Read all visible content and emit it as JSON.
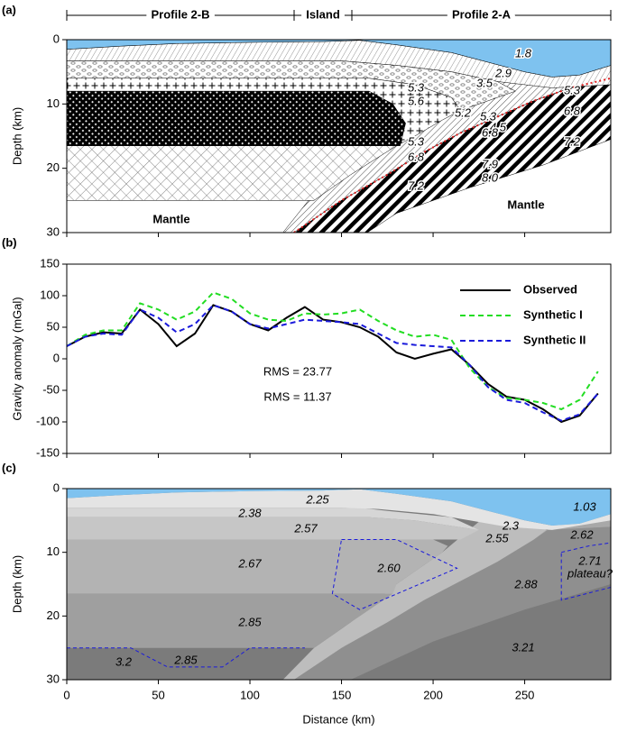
{
  "chart_data": [
    {
      "type": "section",
      "panel_label": "(a)",
      "ylabel": "Depth (km)",
      "y_inverted": true,
      "xlim": [
        0,
        297
      ],
      "xticks": [
        0,
        50,
        100,
        150,
        200,
        250
      ],
      "ylim": [
        0,
        30
      ],
      "yticks": [
        0,
        10,
        20,
        30
      ],
      "segments": [
        "Profile 2-B",
        "Island",
        "Profile 2-A"
      ],
      "labels": [
        "1.8",
        "2.9",
        "3.5",
        "5.3",
        "5.6",
        "5.2",
        "5.3",
        "4.5",
        "6.8",
        "5.3",
        "6.8",
        "5.3",
        "6.8",
        "7.2",
        "7.9",
        "8.0",
        "7.2",
        "Mantle",
        "Mantle"
      ]
    },
    {
      "type": "line",
      "panel_label": "(b)",
      "ylabel": "Gravity anomaly (mGal)",
      "xlim": [
        0,
        297
      ],
      "xticks": [
        0,
        50,
        100,
        150,
        200,
        250
      ],
      "ylim": [
        -150,
        150
      ],
      "yticks": [
        -150,
        -100,
        -50,
        0,
        50,
        100,
        150
      ],
      "x": [
        0,
        10,
        20,
        30,
        40,
        50,
        60,
        70,
        80,
        90,
        100,
        110,
        120,
        130,
        140,
        150,
        160,
        170,
        180,
        190,
        200,
        210,
        220,
        230,
        240,
        250,
        260,
        270,
        280,
        290
      ],
      "series": [
        {
          "name": "Observed",
          "color": "#000000",
          "dash": false,
          "values": [
            20,
            35,
            42,
            40,
            78,
            55,
            20,
            40,
            85,
            75,
            55,
            45,
            65,
            82,
            62,
            58,
            50,
            35,
            10,
            0,
            8,
            15,
            -10,
            -40,
            -60,
            -65,
            -80,
            -100,
            -90,
            -55
          ]
        },
        {
          "name": "Synthetic I",
          "color": "#22dd22",
          "dash": true,
          "values": [
            20,
            38,
            45,
            45,
            88,
            78,
            62,
            75,
            105,
            95,
            72,
            62,
            60,
            72,
            70,
            72,
            78,
            60,
            45,
            35,
            38,
            30,
            -15,
            -45,
            -62,
            -65,
            -70,
            -80,
            -65,
            -20
          ]
        },
        {
          "name": "Synthetic II",
          "color": "#1a1adb",
          "dash": true,
          "values": [
            20,
            35,
            40,
            38,
            78,
            65,
            42,
            55,
            85,
            75,
            55,
            48,
            55,
            62,
            60,
            58,
            55,
            40,
            25,
            22,
            20,
            18,
            -10,
            -45,
            -65,
            -70,
            -85,
            -98,
            -88,
            -55
          ]
        }
      ],
      "legend": "upper right",
      "annotations": [
        {
          "text": "RMS = 23.77",
          "color": "#22dd22"
        },
        {
          "text": "RMS = 11.37",
          "color": "#1a1adb"
        }
      ]
    },
    {
      "type": "section",
      "panel_label": "(c)",
      "ylabel": "Depth (km)",
      "xlabel": "Distance (km)",
      "y_inverted": true,
      "xlim": [
        0,
        297
      ],
      "xticks": [
        0,
        50,
        100,
        150,
        200,
        250
      ],
      "ylim": [
        0,
        30
      ],
      "yticks": [
        0,
        10,
        20,
        30
      ],
      "labels": [
        {
          "text": "2.25",
          "color": "#000000"
        },
        {
          "text": "2.38",
          "color": "#000000"
        },
        {
          "text": "2.57",
          "color": "#000000"
        },
        {
          "text": "2.67",
          "color": "#000000"
        },
        {
          "text": "2.85",
          "color": "#000000"
        },
        {
          "text": "3.2",
          "color": "#000000"
        },
        {
          "text": "2.85",
          "color": "#1a1adb"
        },
        {
          "text": "2.60",
          "color": "#1a1adb"
        },
        {
          "text": "2.71",
          "color": "#1a1adb"
        },
        {
          "text": "plateau?",
          "color": "#1a1adb"
        },
        {
          "text": "1.03",
          "color": "#000000"
        },
        {
          "text": "2.3",
          "color": "#000000"
        },
        {
          "text": "2.55",
          "color": "#000000"
        },
        {
          "text": "2.62",
          "color": "#000000"
        },
        {
          "text": "2.88",
          "color": "#000000"
        },
        {
          "text": "3.21",
          "color": "#000000"
        }
      ]
    }
  ]
}
